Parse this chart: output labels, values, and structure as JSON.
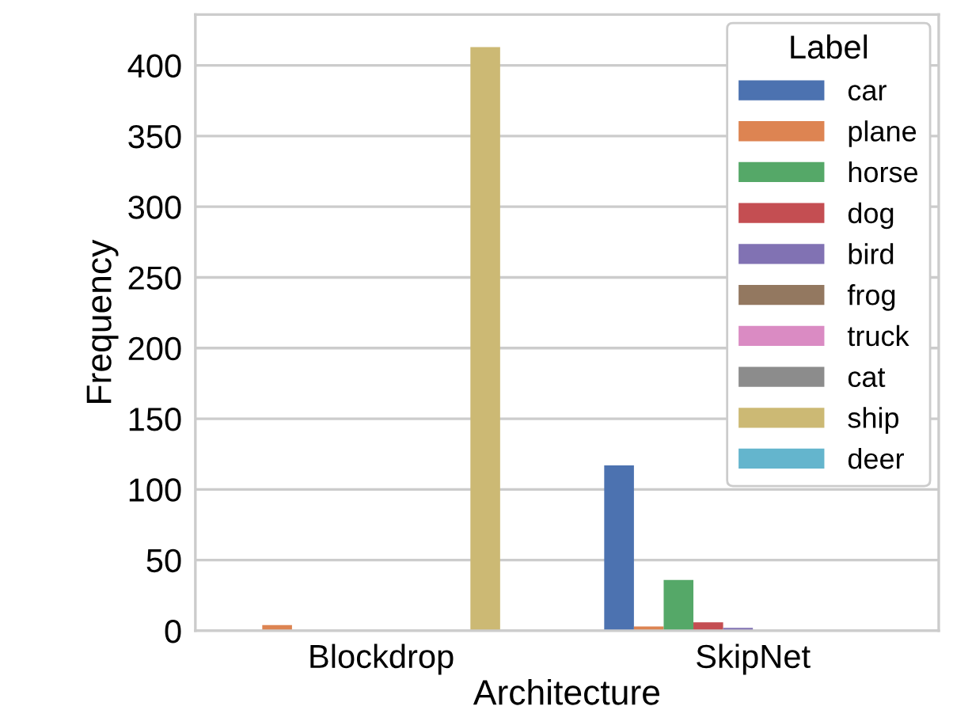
{
  "chart_data": {
    "type": "bar",
    "xlabel": "Architecture",
    "ylabel": "Frequency",
    "legend_title": "Label",
    "legend": "top right",
    "grid": "y",
    "categories": [
      "Blockdrop",
      "SkipNet"
    ],
    "ylim": [
      0,
      436
    ],
    "yticks": [
      0,
      50,
      100,
      150,
      200,
      250,
      300,
      350,
      400
    ],
    "series": [
      {
        "name": "car",
        "color": "#4c72b0",
        "values": [
          0,
          117
        ]
      },
      {
        "name": "plane",
        "color": "#dd8452",
        "values": [
          4,
          3
        ]
      },
      {
        "name": "horse",
        "color": "#55a868",
        "values": [
          0,
          36
        ]
      },
      {
        "name": "dog",
        "color": "#c44e52",
        "values": [
          0,
          6
        ]
      },
      {
        "name": "bird",
        "color": "#8172b3",
        "values": [
          0,
          2
        ]
      },
      {
        "name": "frog",
        "color": "#937860",
        "values": [
          0,
          0
        ]
      },
      {
        "name": "truck",
        "color": "#da8bc3",
        "values": [
          0,
          0
        ]
      },
      {
        "name": "cat",
        "color": "#8c8c8c",
        "values": [
          0,
          0
        ]
      },
      {
        "name": "ship",
        "color": "#ccb974",
        "values": [
          413,
          0
        ]
      },
      {
        "name": "deer",
        "color": "#64b5cd",
        "values": [
          0,
          0
        ]
      }
    ]
  }
}
